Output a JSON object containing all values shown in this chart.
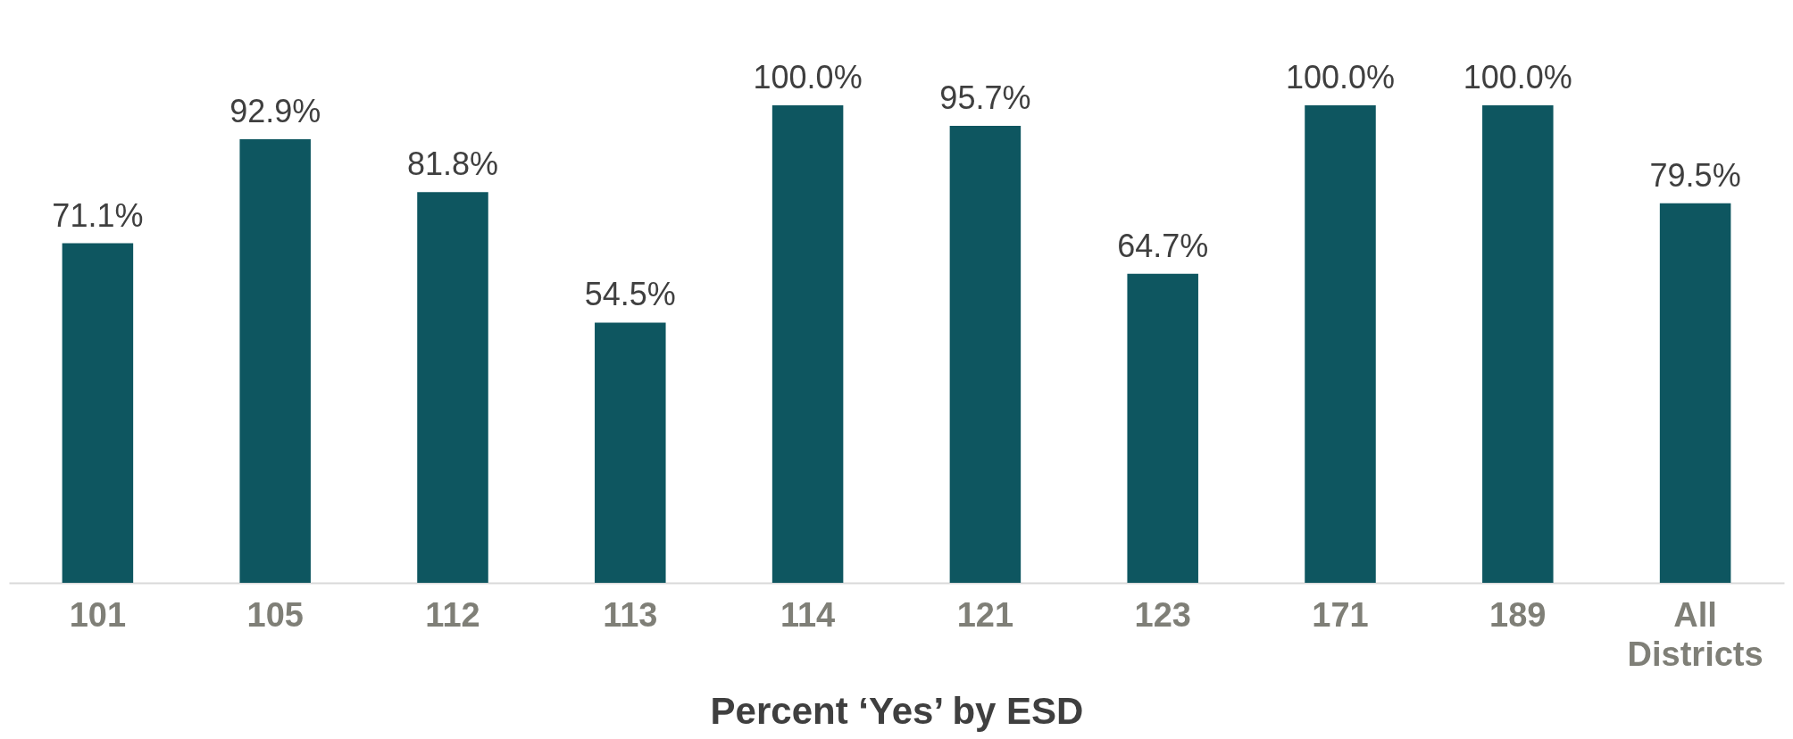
{
  "chart_data": {
    "type": "bar",
    "xlabel": "Percent ‘Yes’ by ESD",
    "categories": [
      "101",
      "105",
      "112",
      "113",
      "114",
      "121",
      "123",
      "171",
      "189",
      "All Districts"
    ],
    "values": [
      71.1,
      92.9,
      81.8,
      54.5,
      100.0,
      95.7,
      64.7,
      100.0,
      100.0,
      79.5
    ],
    "value_labels": [
      "71.1%",
      "92.9%",
      "81.8%",
      "54.5%",
      "100.0%",
      "95.7%",
      "64.7%",
      "100.0%",
      "100.0%",
      "79.5%"
    ],
    "color": "#0e5660",
    "grid": false
  }
}
